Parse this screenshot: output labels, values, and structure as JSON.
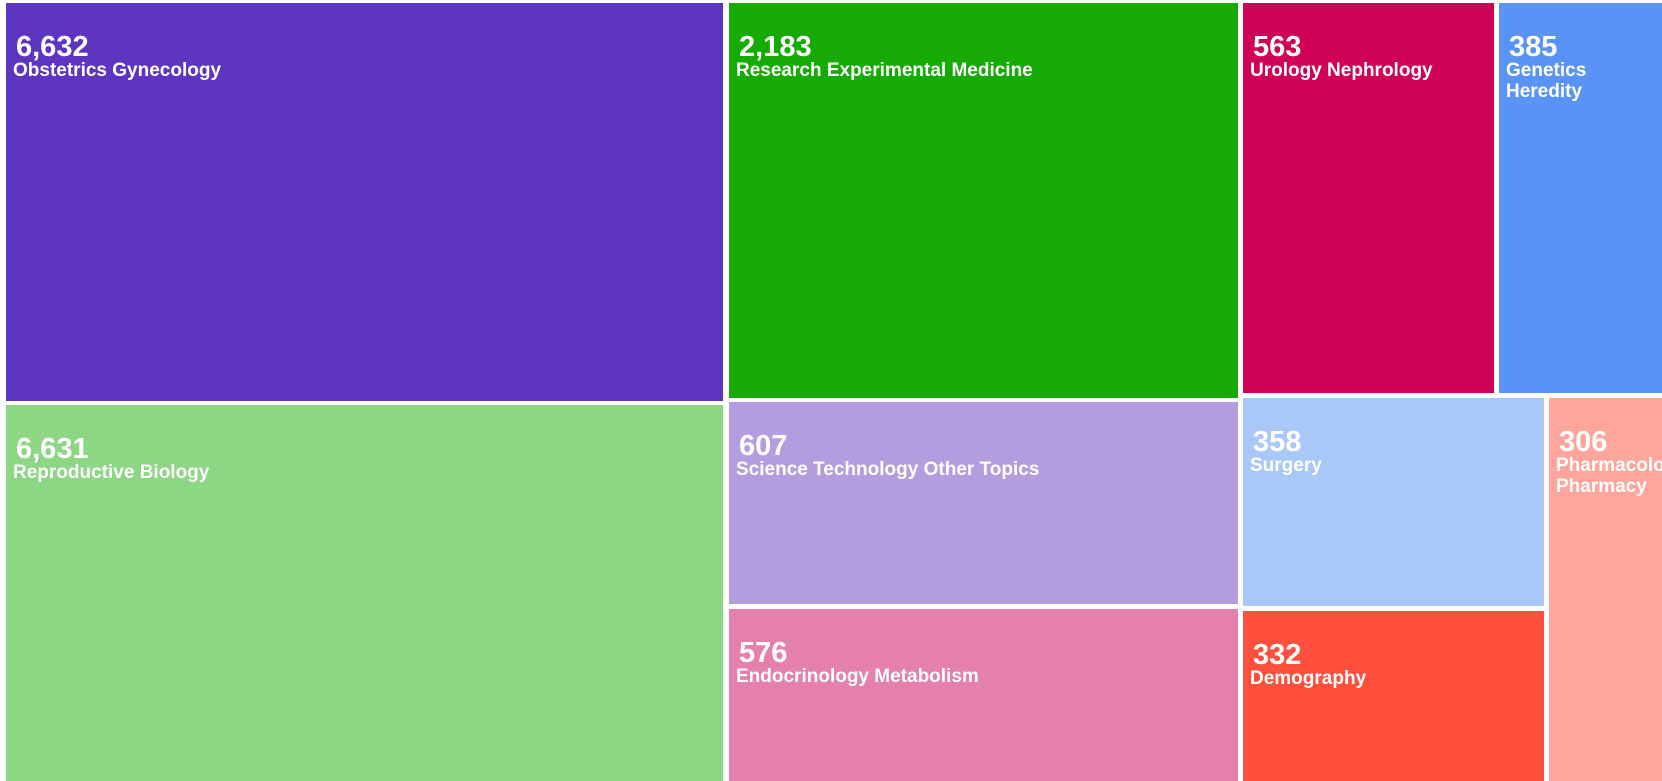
{
  "chart_data": {
    "type": "treemap",
    "items": [
      {
        "label": "Obstetrics Gynecology",
        "value": 6632,
        "display": "6,632",
        "color": "#5e35c1"
      },
      {
        "label": "Reproductive Biology",
        "value": 6631,
        "display": "6,631",
        "color": "#8dd683"
      },
      {
        "label": "Research Experimental Medicine",
        "value": 2183,
        "display": "2,183",
        "color": "#15aa04"
      },
      {
        "label": "Science Technology Other Topics",
        "value": 607,
        "display": "607",
        "color": "#b39ddf"
      },
      {
        "label": "Endocrinology Metabolism",
        "value": 576,
        "display": "576",
        "color": "#e57fab"
      },
      {
        "label": "Urology Nephrology",
        "value": 563,
        "display": "563",
        "color": "#d00256"
      },
      {
        "label": "Genetics Heredity",
        "value": 385,
        "display": "385",
        "color": "#5893f5"
      },
      {
        "label": "Surgery",
        "value": 358,
        "display": "358",
        "color": "#a9c7f8"
      },
      {
        "label": "Demography",
        "value": 332,
        "display": "332",
        "color": "#ff503d"
      },
      {
        "label": "Pharmacology Pharmacy",
        "value": 306,
        "display": "306",
        "color": "#ffa59b"
      }
    ]
  }
}
